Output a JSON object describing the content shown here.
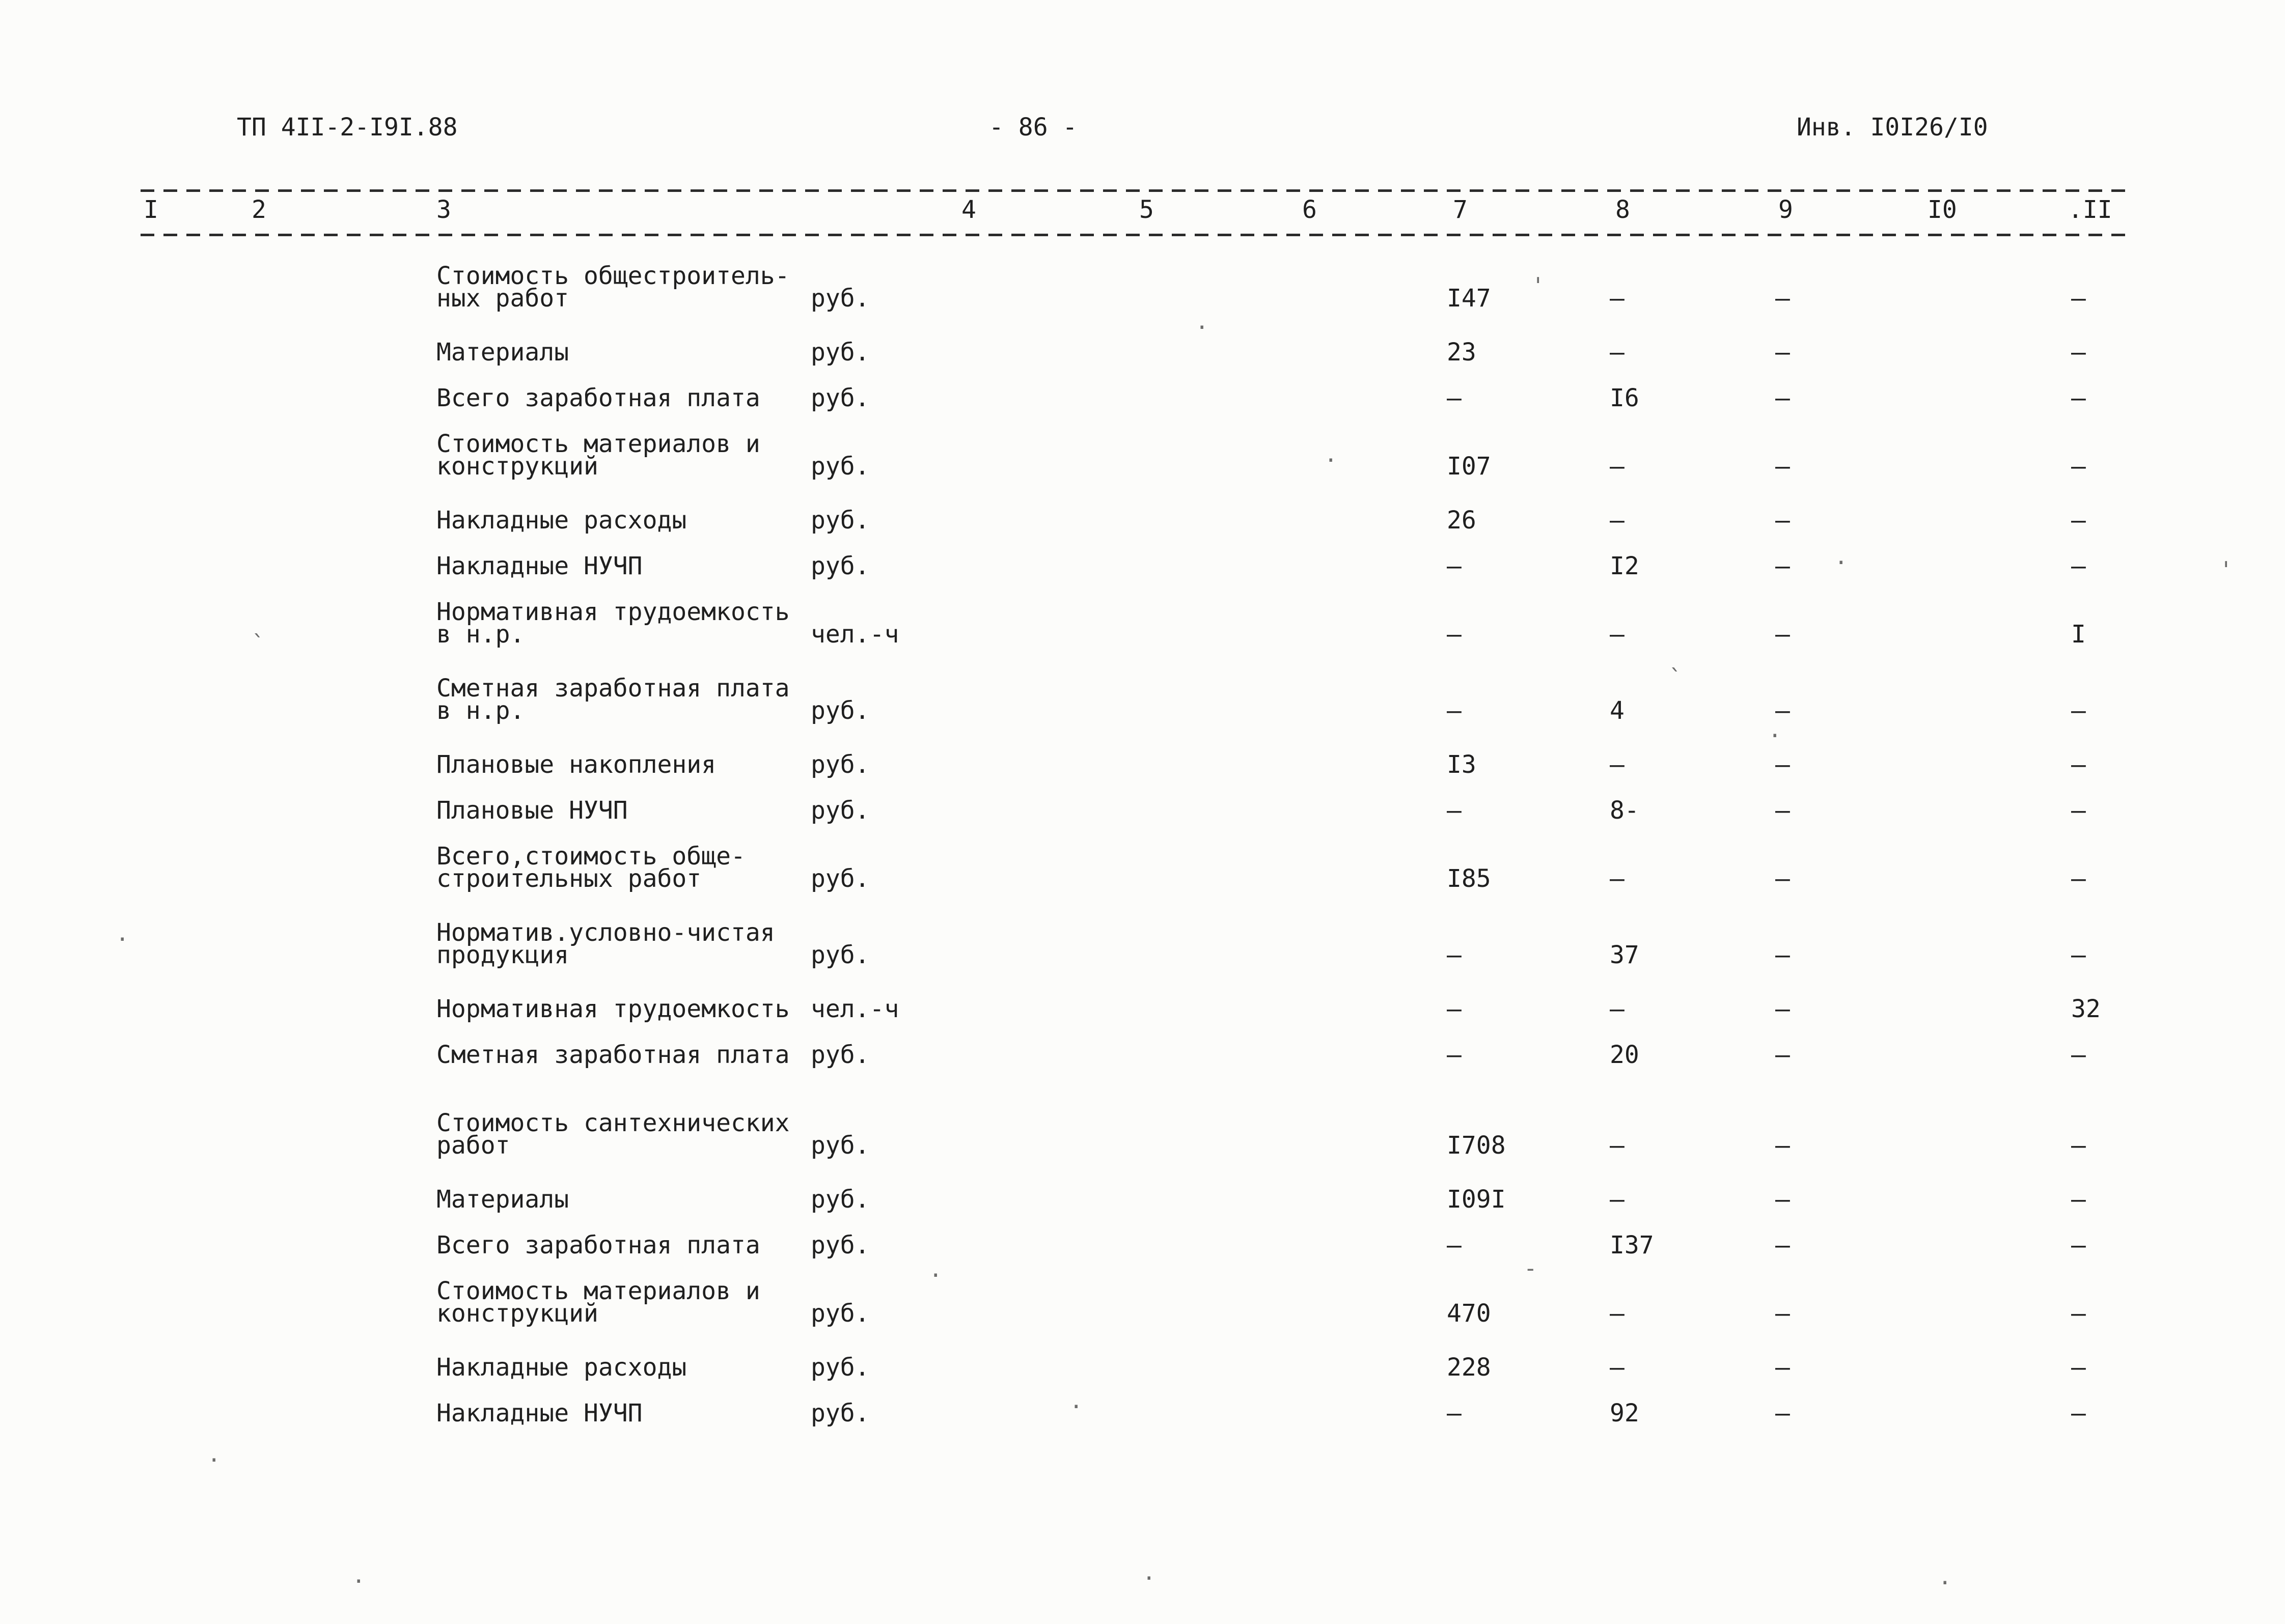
{
  "header": {
    "doc_code": "ТП 4II-2-I9I.88",
    "page_number": "- 86 -",
    "inv_number": "Инв. I0I26/I0"
  },
  "columns": [
    "I",
    "2",
    "3",
    "4",
    "5",
    "6",
    "7",
    "8",
    "9",
    "I0",
    ".II"
  ],
  "table": {
    "rows": [
      {
        "label": [
          "Стоимость общестроитель-",
          "ных работ"
        ],
        "unit": "руб.",
        "c7": "I47",
        "c8": "–",
        "c9": "–",
        "c11": "–"
      },
      {
        "label": [
          "Материалы"
        ],
        "unit": "руб.",
        "c7": "23",
        "c8": "–",
        "c9": "–",
        "c11": "–"
      },
      {
        "label": [
          "Всего заработная плата"
        ],
        "unit": "руб.",
        "c7": "–",
        "c8": "I6",
        "c9": "–",
        "c11": "–"
      },
      {
        "label": [
          "Стоимость материалов и",
          "конструкций"
        ],
        "unit": "руб.",
        "c7": "I07",
        "c8": "–",
        "c9": "–",
        "c11": "–"
      },
      {
        "label": [
          "Накладные расходы"
        ],
        "unit": "руб.",
        "c7": "26",
        "c8": "–",
        "c9": "–",
        "c11": "–"
      },
      {
        "label": [
          "Накладные НУЧП"
        ],
        "unit": "руб.",
        "c7": "–",
        "c8": "I2",
        "c9": "–",
        "c11": "–"
      },
      {
        "label": [
          "Нормативная трудоемкость",
          "в н.р."
        ],
        "unit": "чел.-ч",
        "c7": "–",
        "c8": "–",
        "c9": "–",
        "c11": "I"
      },
      {
        "label": [
          "Сметная заработная плата",
          "в н.р."
        ],
        "unit": "руб.",
        "c7": "–",
        "c8": "4",
        "c9": "–",
        "c11": "–"
      },
      {
        "label": [
          "Плановые накопления"
        ],
        "unit": "руб.",
        "c7": "I3",
        "c8": "–",
        "c9": "–",
        "c11": "–"
      },
      {
        "label": [
          "Плановые НУЧП"
        ],
        "unit": "руб.",
        "c7": "–",
        "c8": "8-",
        "c9": "–",
        "c11": "–"
      },
      {
        "label": [
          "Всего,стоимость обще-",
          "строительных работ"
        ],
        "unit": "руб.",
        "c7": "I85",
        "c8": "–",
        "c9": "–",
        "c11": "–"
      },
      {
        "label": [
          "Норматив.условно-чистая",
          "продукция"
        ],
        "unit": "руб.",
        "c7": "–",
        "c8": "37",
        "c9": "–",
        "c11": "–"
      },
      {
        "label": [
          "Нормативная трудоемкость"
        ],
        "unit": "чел.-ч",
        "c7": "–",
        "c8": "–",
        "c9": "–",
        "c11": "32"
      },
      {
        "label": [
          "Сметная заработная плата"
        ],
        "unit": "руб.",
        "c7": "–",
        "c8": "20",
        "c9": "–",
        "c11": "–"
      },
      {
        "label": [
          "Стоимость сантехнических",
          "работ"
        ],
        "unit": "руб.",
        "c7": "I708",
        "c8": "–",
        "c9": "–",
        "c11": "–",
        "gap_before": true
      },
      {
        "label": [
          "Материалы"
        ],
        "unit": "руб.",
        "c7": "I09I",
        "c8": "–",
        "c9": "–",
        "c11": "–"
      },
      {
        "label": [
          "Всего заработная плата"
        ],
        "unit": "руб.",
        "c7": "–",
        "c8": "I37",
        "c9": "–",
        "c11": "–"
      },
      {
        "label": [
          "Стоимость материалов и",
          "конструкций"
        ],
        "unit": "руб.",
        "c7": "470",
        "c8": "–",
        "c9": "–",
        "c11": "–"
      },
      {
        "label": [
          "Накладные расходы"
        ],
        "unit": "руб.",
        "c7": "228",
        "c8": "–",
        "c9": "–",
        "c11": "–"
      },
      {
        "label": [
          "Накладные НУЧП"
        ],
        "unit": "руб.",
        "c7": "–",
        "c8": "92",
        "c9": "–",
        "c11": "–"
      }
    ]
  }
}
